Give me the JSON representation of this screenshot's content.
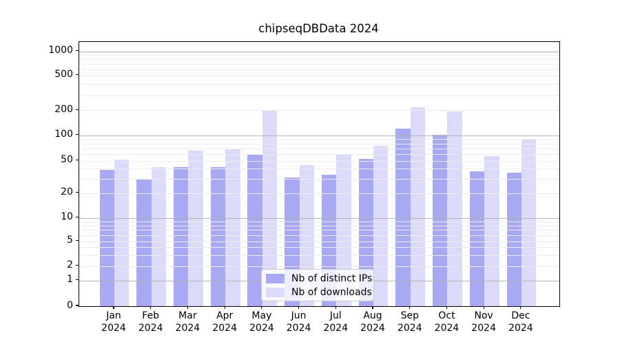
{
  "title": "chipseqDBData 2024",
  "chart_data": {
    "type": "bar",
    "title": "chipseqDBData 2024",
    "categories": [
      "Jan",
      "Feb",
      "Mar",
      "Apr",
      "May",
      "Jun",
      "Jul",
      "Aug",
      "Sep",
      "Oct",
      "Nov",
      "Dec"
    ],
    "category_year": "2024",
    "series": [
      {
        "name": "Nb of distinct IPs",
        "color": "#a8a8f3",
        "values": [
          39,
          30,
          42,
          42,
          60,
          31,
          34,
          53,
          120,
          102,
          37,
          36
        ]
      },
      {
        "name": "Nb of downloads",
        "color": "#dbdbf9",
        "values": [
          52,
          42,
          66,
          70,
          198,
          44,
          60,
          75,
          215,
          193,
          57,
          90
        ]
      }
    ],
    "y_ticks": [
      0,
      1,
      2,
      5,
      10,
      20,
      50,
      100,
      200,
      500,
      1000
    ],
    "y_scale": "symlog",
    "ylim": [
      0,
      1300
    ],
    "xlabel": "",
    "ylabel": "",
    "grid": true,
    "legend_position": "bottom-center"
  },
  "colors": {
    "bar_dark": "#a8a8f3",
    "bar_light": "#dbdbf9",
    "grid_major": "#b3b3b3",
    "grid_minor": "#ebebeb",
    "axis": "#000000",
    "text": "#000000",
    "legend_border": "#cccccc"
  }
}
